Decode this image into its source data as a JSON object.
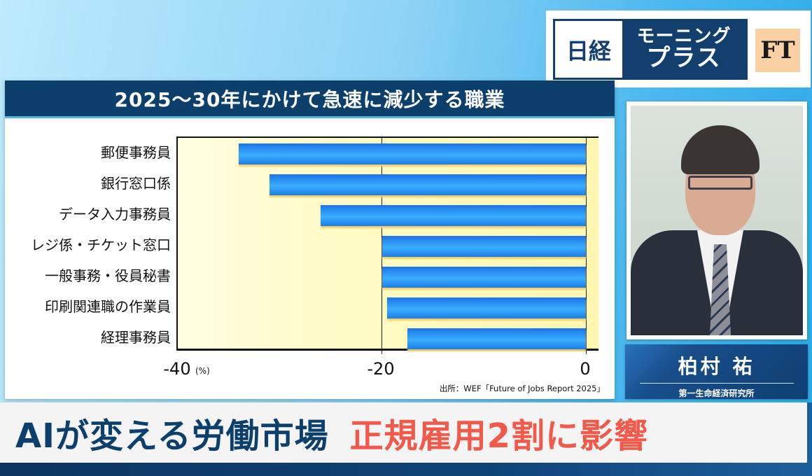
{
  "logo": {
    "nikkei": "日経",
    "show_line1": "モーニング",
    "show_line2": "プラス",
    "ft": "FT"
  },
  "chart": {
    "title": "2025〜30年にかけて急速に減少する職業",
    "unit": "(%)",
    "source": "出所：WEF「Future of Jobs Report 2025」",
    "ticks": [
      "-40",
      "-20",
      "0"
    ]
  },
  "chart_data": {
    "type": "bar",
    "orientation": "horizontal",
    "title": "2025〜30年にかけて急速に減少する職業",
    "categories": [
      "郵便事務員",
      "銀行窓口係",
      "データ入力事務員",
      "レジ係・チケット窓口",
      "一般事務・役員秘書",
      "印刷関連職の作業員",
      "経理事務員"
    ],
    "values": [
      -34,
      -31,
      -26,
      -20,
      -20,
      -19.5,
      -17.5
    ],
    "xlabel": "(%)",
    "ylabel": "",
    "xlim": [
      -40,
      0
    ],
    "xticks": [
      -40,
      -20,
      0
    ],
    "grid": true,
    "source": "出所：WEF「Future of Jobs Report 2025」",
    "bar_color": "#2a8ff5"
  },
  "speaker": {
    "name": "柏村 祐",
    "affiliation": "第一生命経済研究所"
  },
  "headline": {
    "part1": "AIが変える労働市場",
    "part2": "正規雇用2割に影響",
    "part1_color": "#0d3f6c",
    "part2_color": "#f15a4a"
  }
}
